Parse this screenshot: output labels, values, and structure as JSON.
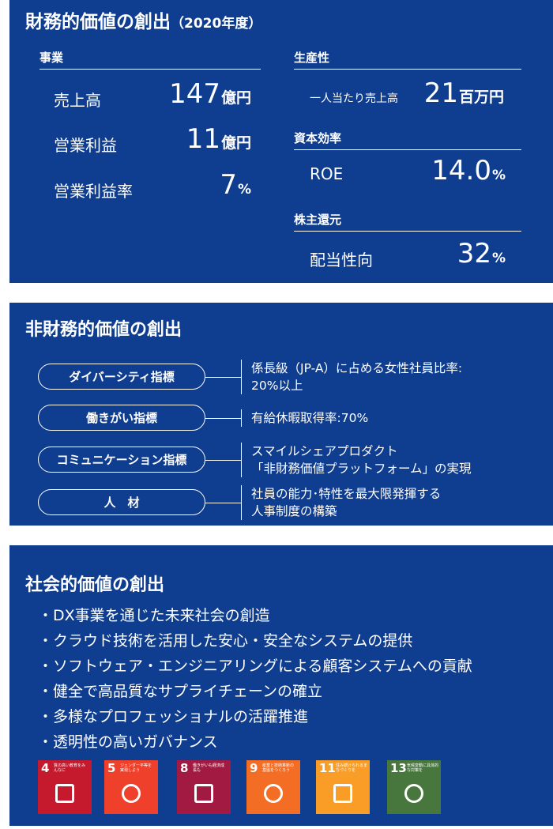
{
  "financial": {
    "title": "財務的価値の創出",
    "year": "（2020年度）",
    "sections": [
      {
        "header": "事業",
        "items": [
          {
            "label": "売上高",
            "value": "147",
            "unit": "億円"
          },
          {
            "label": "営業利益",
            "value": "11",
            "unit": "億円"
          },
          {
            "label": "営業利益率",
            "value": "7",
            "unit": "%"
          }
        ]
      },
      {
        "header": "生産性",
        "items": [
          {
            "label": "一人当たり売上高",
            "value": "21",
            "unit": "百万円"
          }
        ]
      },
      {
        "header": "資本効率",
        "items": [
          {
            "label": "ROE",
            "value": "14.0",
            "unit": "%"
          }
        ]
      },
      {
        "header": "株主還元",
        "items": [
          {
            "label": "配当性向",
            "value": "32",
            "unit": "%"
          }
        ]
      }
    ]
  },
  "non_financial": {
    "title": "非財務的価値の創出",
    "items": [
      {
        "label": "ダイバーシティ指標",
        "lines": [
          "係長級（JP-A）に占める女性社員比率:",
          "20%以上"
        ]
      },
      {
        "label": "働きがい指標",
        "lines": [
          "有給休暇取得率:70%"
        ]
      },
      {
        "label": "コミュニケーション指標",
        "lines": [
          "スマイルシェアプロダクト",
          "「非財務価値プラットフォーム」の実現"
        ]
      },
      {
        "label": "人　材",
        "lines": [
          "社員の能力･特性を最大限発揮する",
          "人事制度の構築"
        ]
      }
    ]
  },
  "social": {
    "title": "社会的価値の創出",
    "bullets": [
      "・DX事業を通じた未来社会の創造",
      "・クラウド技術を活用した安心・安全なシステムの提供",
      "・ソフトウェア・エンジニアリングによる顧客システムへの貢献",
      "・健全で高品質なサプライチェーンの確立",
      "・多様なプロフェッショナルの活躍推進",
      "・透明性の高いガバナンス"
    ],
    "sdgs": [
      {
        "number": "4",
        "caption": "質の高い教育をみんなに",
        "color": "#c5192d"
      },
      {
        "number": "5",
        "caption": "ジェンダー平等を実現しよう",
        "color": "#ef402b"
      },
      {
        "number": "8",
        "caption": "働きがいも経済成長も",
        "color": "#a21942"
      },
      {
        "number": "9",
        "caption": "産業と技術革新の基盤をつくろう",
        "color": "#f36d25"
      },
      {
        "number": "11",
        "caption": "住み続けられるまちづくりを",
        "color": "#f99d26"
      },
      {
        "number": "13",
        "caption": "気候変動に具体的な対策を",
        "color": "#48773e"
      }
    ]
  }
}
